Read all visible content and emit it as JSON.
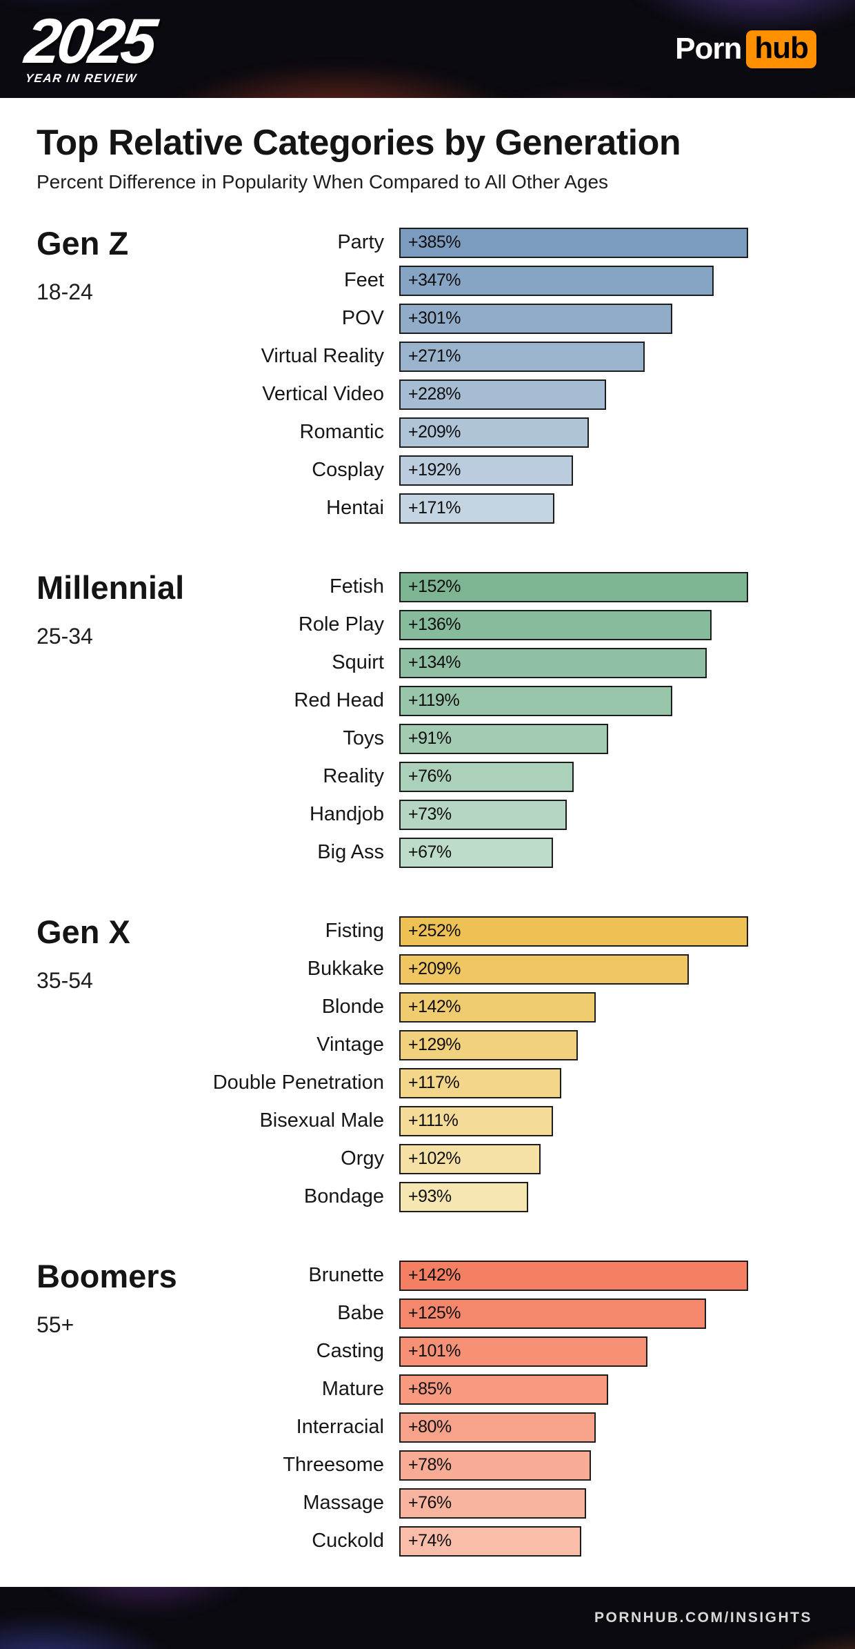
{
  "header": {
    "logo_year": "2025",
    "logo_sub": "YEAR IN REVIEW",
    "brand": {
      "porn": "Porn",
      "hub": "hub",
      "hub_bg": "#ff9000"
    }
  },
  "footer": {
    "site": "PORNHUB.COM/INSIGHTS"
  },
  "chart_data": {
    "type": "bar",
    "orientation": "horizontal",
    "title": "Top Relative Categories by Generation",
    "subtitle": "Percent Difference in Popularity When Compared to All Other Ages",
    "value_unit": "percent difference",
    "bar_scaling": "normalized to each group's maximum value",
    "groups": [
      {
        "name": "Gen Z",
        "age_range": "18-24",
        "color_start": "#7b9cbf",
        "color_end": "#c5d4e2",
        "categories": [
          "Party",
          "Feet",
          "POV",
          "Virtual Reality",
          "Vertical Video",
          "Romantic",
          "Cosplay",
          "Hentai"
        ],
        "values": [
          385,
          347,
          301,
          271,
          228,
          209,
          192,
          171
        ],
        "labels": [
          "+385%",
          "+347%",
          "+301%",
          "+271%",
          "+228%",
          "+209%",
          "+192%",
          "+171%"
        ]
      },
      {
        "name": "Millennial",
        "age_range": "25-34",
        "color_start": "#7db593",
        "color_end": "#bedcca",
        "categories": [
          "Fetish",
          "Role Play",
          "Squirt",
          "Red Head",
          "Toys",
          "Reality",
          "Handjob",
          "Big Ass"
        ],
        "values": [
          152,
          136,
          134,
          119,
          91,
          76,
          73,
          67
        ],
        "labels": [
          "+152%",
          "+136%",
          "+134%",
          "+119%",
          "+91%",
          "+76%",
          "+73%",
          "+67%"
        ]
      },
      {
        "name": "Gen X",
        "age_range": "35-54",
        "color_start": "#eec155",
        "color_end": "#f6e6b2",
        "categories": [
          "Fisting",
          "Bukkake",
          "Blonde",
          "Vintage",
          "Double Penetration",
          "Bisexual Male",
          "Orgy",
          "Bondage"
        ],
        "values": [
          252,
          209,
          142,
          129,
          117,
          111,
          102,
          93
        ],
        "labels": [
          "+252%",
          "+209%",
          "+142%",
          "+129%",
          "+117%",
          "+111%",
          "+102%",
          "+93%"
        ]
      },
      {
        "name": "Boomers",
        "age_range": "55+",
        "color_start": "#f47f62",
        "color_end": "#fabda9",
        "categories": [
          "Brunette",
          "Babe",
          "Casting",
          "Mature",
          "Interracial",
          "Threesome",
          "Massage",
          "Cuckold"
        ],
        "values": [
          142,
          125,
          101,
          85,
          80,
          78,
          76,
          74
        ],
        "labels": [
          "+142%",
          "+125%",
          "+101%",
          "+85%",
          "+80%",
          "+78%",
          "+76%",
          "+74%"
        ]
      }
    ]
  }
}
